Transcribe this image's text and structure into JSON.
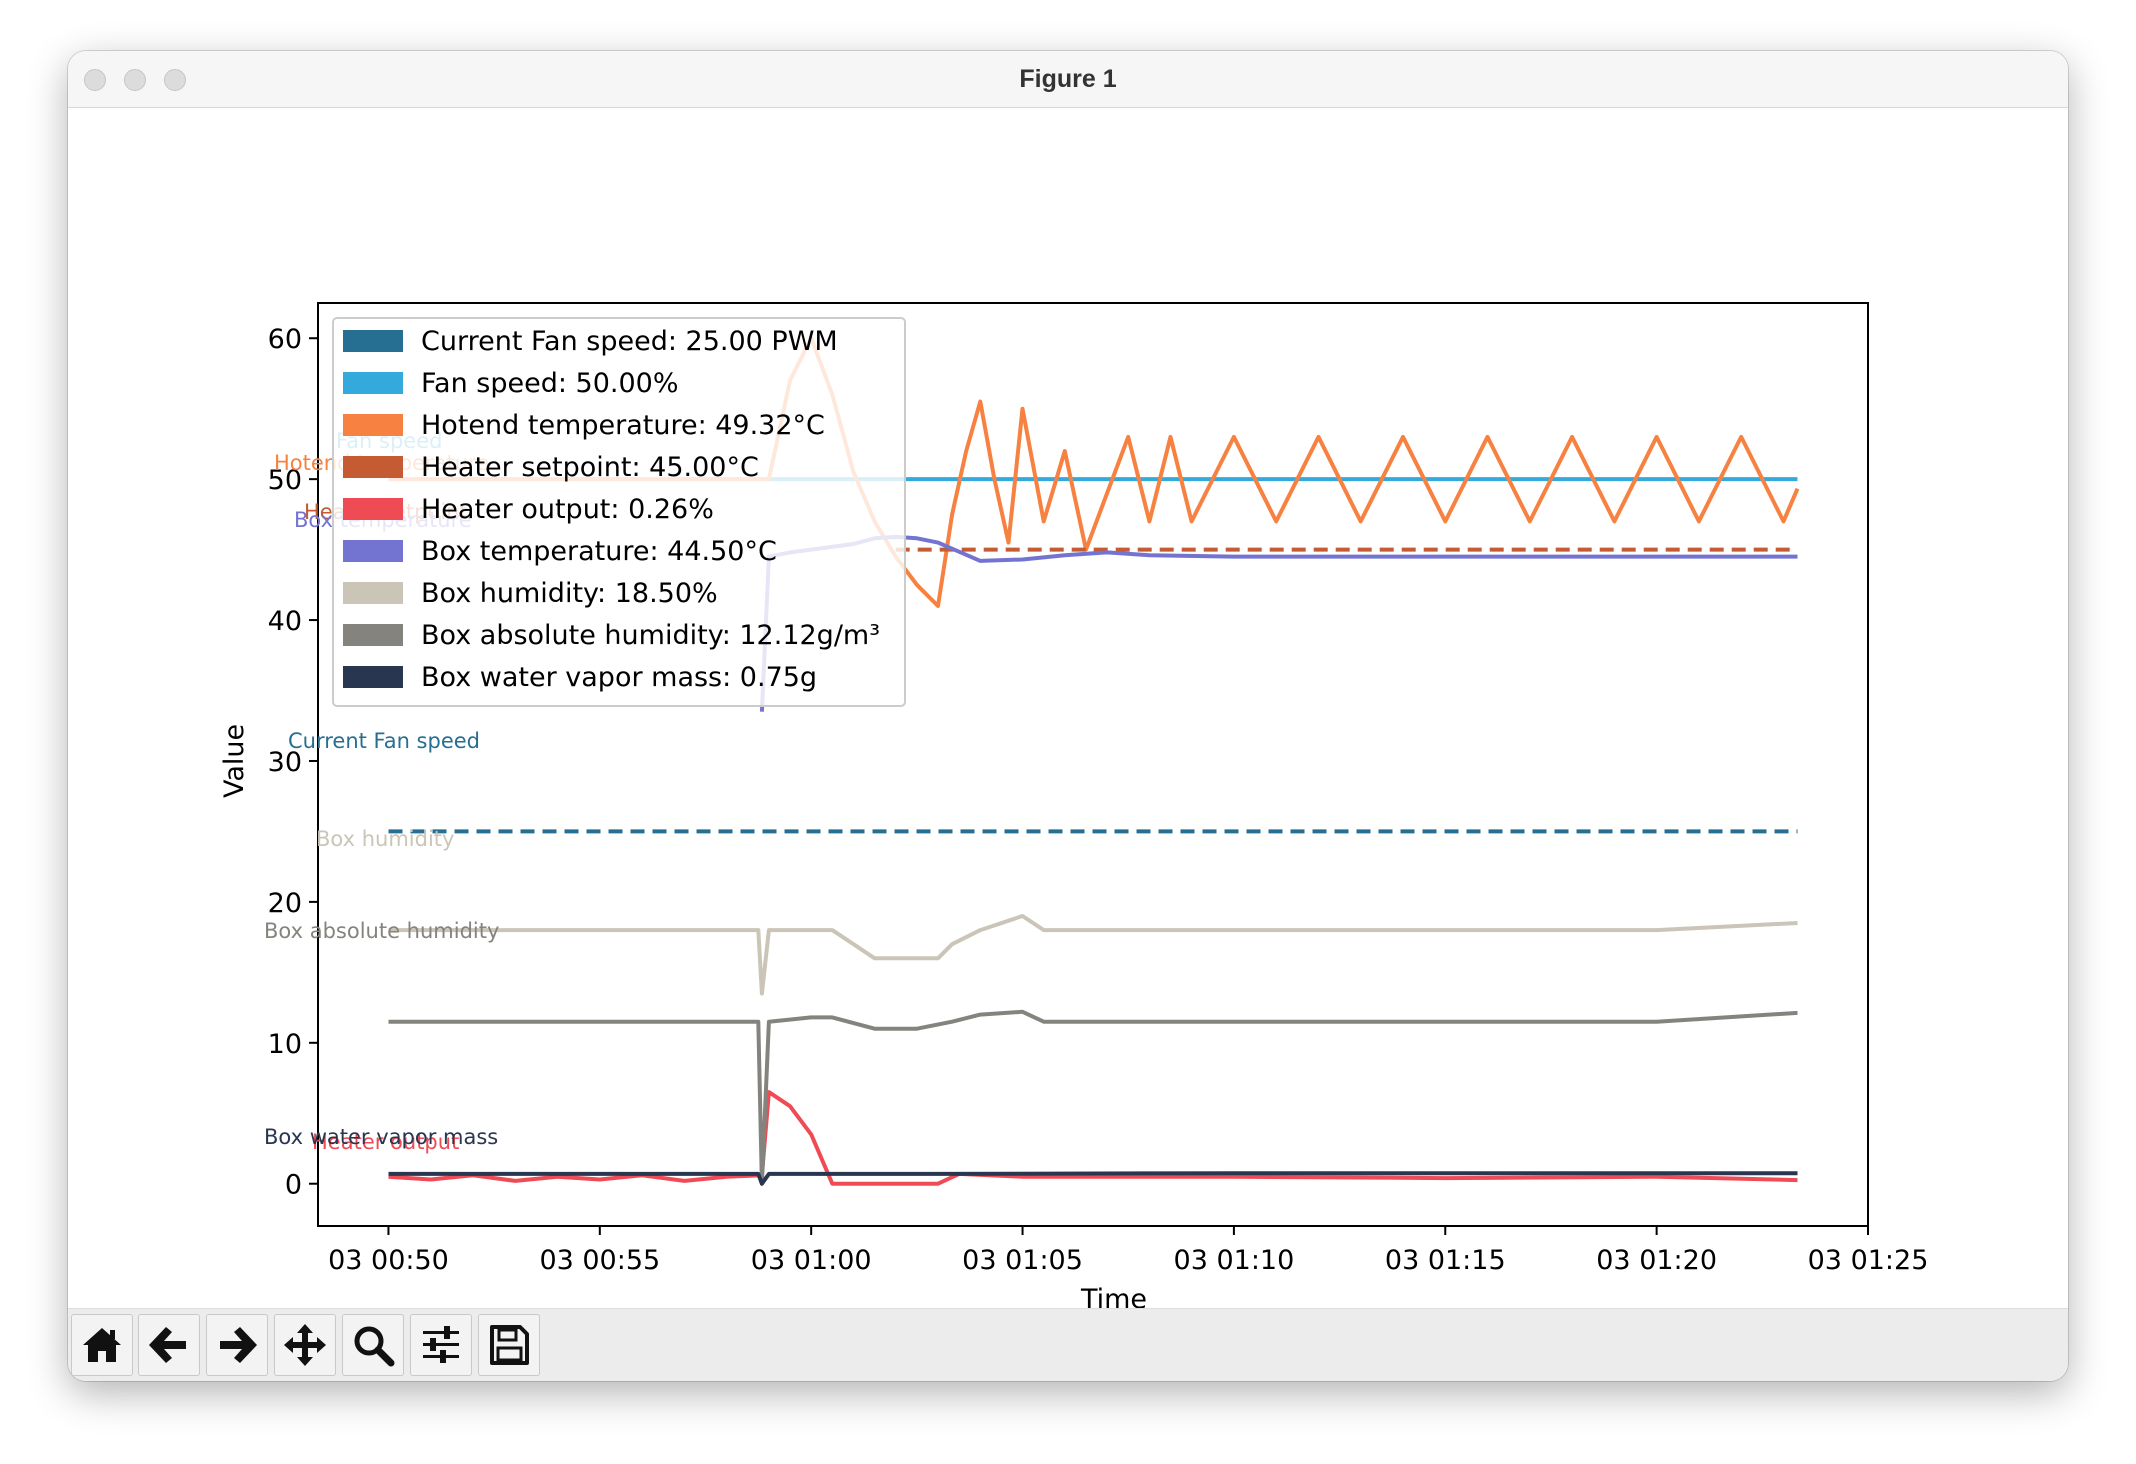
{
  "window": {
    "title": "Figure 1"
  },
  "colors": {
    "current_fan": "#266f92",
    "fan": "#34a9dc",
    "hotend": "#f78140",
    "setpoint": "#c45b33",
    "heater": "#ef4b55",
    "box_temp": "#7373d2",
    "box_hum": "#cbc5b8",
    "abs_hum": "#85837d",
    "vapor": "#283650"
  },
  "toolbar": {
    "buttons": [
      {
        "name": "home-button",
        "icon": "home-icon"
      },
      {
        "name": "back-button",
        "icon": "arrow-left-icon"
      },
      {
        "name": "forward-button",
        "icon": "arrow-right-icon"
      },
      {
        "name": "pan-button",
        "icon": "move-icon"
      },
      {
        "name": "zoom-button",
        "icon": "magnifier-icon"
      },
      {
        "name": "configure-button",
        "icon": "sliders-icon"
      },
      {
        "name": "save-button",
        "icon": "floppy-icon"
      }
    ]
  },
  "chart_data": {
    "type": "line",
    "xlabel": "Time",
    "ylabel": "Value",
    "xlim": [
      "03 00:48:20",
      "03 01:25:00"
    ],
    "ylim": [
      -3,
      62.5
    ],
    "x_ticks": [
      "03 00:50",
      "03 00:55",
      "03 01:00",
      "03 01:05",
      "03 01:10",
      "03 01:15",
      "03 01:20",
      "03 01:25"
    ],
    "y_ticks": [
      0,
      10,
      20,
      30,
      40,
      50,
      60
    ],
    "grid": false,
    "legend_position": "upper-left",
    "legend": [
      "Current Fan speed: 25.00 PWM",
      "Fan speed: 50.00%",
      "Hotend temperature: 49.32°C",
      "Heater setpoint: 45.00°C",
      "Heater output: 0.26%",
      "Box temperature: 44.50°C",
      "Box humidity: 18.50%",
      "Box absolute humidity: 12.12g/m³",
      "Box water vapor mass: 0.75g"
    ],
    "series_labels": [
      "Current Fan speed",
      "Fan speed",
      "Hotend temperature",
      "Heater setpoint",
      "Heater output",
      "Box temperature",
      "Box humidity",
      "Box absolute humidity",
      "Box water vapor mass"
    ],
    "series": [
      {
        "name": "Current Fan speed",
        "style": "dashed",
        "x": [
          "00:50:00",
          "01:23:20"
        ],
        "y": [
          25.0,
          25.0
        ]
      },
      {
        "name": "Fan speed",
        "style": "solid",
        "x": [
          "00:50:00",
          "01:23:20"
        ],
        "y": [
          50.0,
          50.0
        ]
      },
      {
        "name": "Hotend temperature",
        "style": "solid",
        "x": [
          "00:50:00",
          "00:51:00",
          "00:52:00",
          "00:53:00",
          "00:54:00",
          "00:55:00",
          "00:56:00",
          "00:57:00",
          "00:58:00",
          "00:59:00",
          "00:59:30",
          "01:00:00",
          "01:00:30",
          "01:01:00",
          "01:01:30",
          "01:02:00",
          "01:02:30",
          "01:03:00",
          "01:03:20",
          "01:03:40",
          "01:04:00",
          "01:04:20",
          "01:04:40",
          "01:05:00",
          "01:05:30",
          "01:06:00",
          "01:06:30",
          "01:07:00",
          "01:07:30",
          "01:08:00",
          "01:08:30",
          "01:09:00",
          "01:10:00",
          "01:11:00",
          "01:12:00",
          "01:13:00",
          "01:14:00",
          "01:15:00",
          "01:16:00",
          "01:17:00",
          "01:18:00",
          "01:19:00",
          "01:20:00",
          "01:21:00",
          "01:22:00",
          "01:23:00",
          "01:23:20"
        ],
        "y": [
          50.0,
          50.0,
          50.0,
          50.0,
          50.0,
          50.0,
          50.0,
          50.0,
          50.0,
          50.0,
          57.0,
          60.0,
          56.0,
          50.5,
          47.0,
          44.5,
          42.5,
          41.0,
          47.5,
          52.0,
          55.5,
          50.0,
          45.5,
          55.0,
          47.0,
          52.0,
          45.0,
          49.0,
          53.0,
          47.0,
          53.0,
          47.0,
          53.0,
          47.0,
          53.0,
          47.0,
          53.0,
          47.0,
          53.0,
          47.0,
          53.0,
          47.0,
          53.0,
          47.0,
          53.0,
          47.0,
          49.32
        ]
      },
      {
        "name": "Heater setpoint",
        "style": "dashed",
        "x": [
          "01:02:00",
          "01:23:20"
        ],
        "y": [
          45.0,
          45.0
        ]
      },
      {
        "name": "Heater output",
        "style": "solid",
        "x": [
          "00:50:00",
          "00:51:00",
          "00:52:00",
          "00:53:00",
          "00:54:00",
          "00:55:00",
          "00:56:00",
          "00:57:00",
          "00:58:00",
          "00:58:50",
          "00:59:00",
          "00:59:30",
          "01:00:00",
          "01:00:30",
          "01:02:00",
          "01:03:00",
          "01:03:30",
          "01:05:00",
          "01:10:00",
          "01:15:00",
          "01:20:00",
          "01:23:20"
        ],
        "y": [
          0.5,
          0.3,
          0.6,
          0.2,
          0.5,
          0.3,
          0.6,
          0.2,
          0.5,
          0.6,
          6.5,
          5.5,
          3.5,
          0.0,
          0.0,
          0.0,
          0.7,
          0.5,
          0.5,
          0.4,
          0.5,
          0.26
        ]
      },
      {
        "name": "Box temperature",
        "style": "solid",
        "x": [
          "00:58:50",
          "00:59:00",
          "00:59:30",
          "01:00:00",
          "01:01:00",
          "01:01:30",
          "01:02:00",
          "01:02:30",
          "01:03:00",
          "01:04:00",
          "01:05:00",
          "01:06:00",
          "01:07:00",
          "01:08:00",
          "01:10:00",
          "01:15:00",
          "01:20:00",
          "01:23:20"
        ],
        "y": [
          33.5,
          44.5,
          44.8,
          45.0,
          45.4,
          45.8,
          45.9,
          45.8,
          45.5,
          44.2,
          44.3,
          44.6,
          44.8,
          44.6,
          44.5,
          44.5,
          44.5,
          44.5
        ]
      },
      {
        "name": "Box humidity",
        "style": "solid",
        "x": [
          "00:50:00",
          "00:58:45",
          "00:58:50",
          "00:59:00",
          "01:00:30",
          "01:01:00",
          "01:01:30",
          "01:02:00",
          "01:03:00",
          "01:03:20",
          "01:04:00",
          "01:05:00",
          "01:05:30",
          "01:10:00",
          "01:15:00",
          "01:20:00",
          "01:23:20"
        ],
        "y": [
          18.0,
          18.0,
          13.5,
          18.0,
          18.0,
          17.0,
          16.0,
          16.0,
          16.0,
          17.0,
          18.0,
          19.0,
          18.0,
          18.0,
          18.0,
          18.0,
          18.5
        ]
      },
      {
        "name": "Box absolute humidity",
        "style": "solid",
        "x": [
          "00:50:00",
          "00:58:45",
          "00:58:50",
          "00:59:00",
          "01:00:00",
          "01:00:30",
          "01:01:30",
          "01:02:30",
          "01:03:20",
          "01:04:00",
          "01:05:00",
          "01:05:30",
          "01:10:00",
          "01:15:00",
          "01:20:00",
          "01:23:20"
        ],
        "y": [
          11.5,
          11.5,
          0.0,
          11.5,
          11.8,
          11.8,
          11.0,
          11.0,
          11.5,
          12.0,
          12.2,
          11.5,
          11.5,
          11.5,
          11.5,
          12.12
        ]
      },
      {
        "name": "Box water vapor mass",
        "style": "solid",
        "x": [
          "00:50:00",
          "00:58:45",
          "00:58:50",
          "00:59:00",
          "01:03:00",
          "01:10:00",
          "01:20:00",
          "01:23:20"
        ],
        "y": [
          0.7,
          0.7,
          0.0,
          0.7,
          0.7,
          0.75,
          0.75,
          0.75
        ]
      }
    ]
  }
}
